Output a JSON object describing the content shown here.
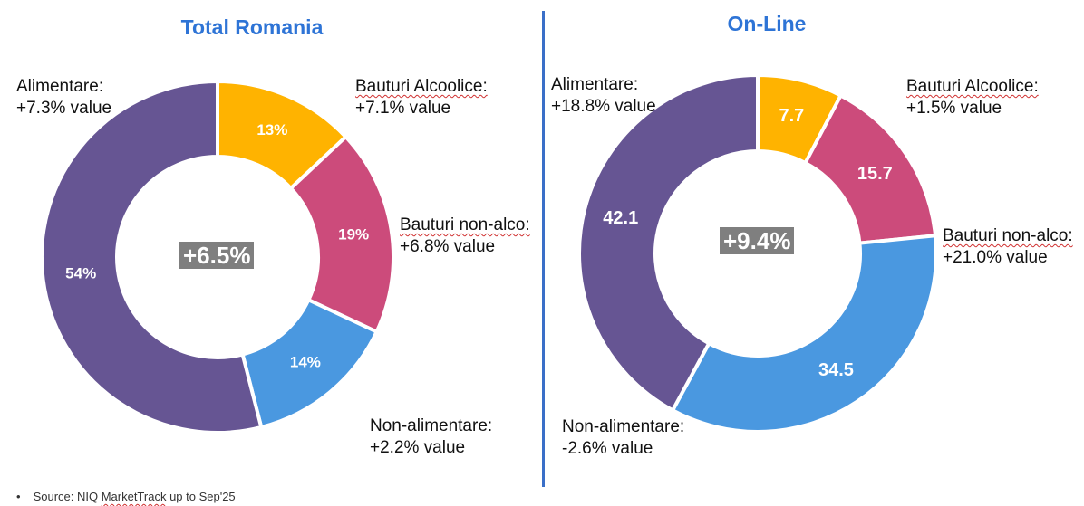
{
  "panels": [
    {
      "title": "Total Romania",
      "center_value": "+6.5%",
      "labels": [
        {
          "name": "Alimentare:",
          "value": "+7.3% value"
        },
        {
          "name": "Bauturi Alcoolice:",
          "value": "+7.1% value"
        },
        {
          "name": "Bauturi non-alco:",
          "value": "+6.8% value"
        },
        {
          "name": "Non-alimentare:",
          "value": "+2.2% value"
        }
      ]
    },
    {
      "title": "On-Line",
      "center_value": "+9.4%",
      "labels": [
        {
          "name": "Alimentare:",
          "value": "+18.8% value"
        },
        {
          "name": "Bauturi Alcoolice:",
          "value": "+1.5% value"
        },
        {
          "name": "Bauturi non-alco:",
          "value": "+21.0% value"
        },
        {
          "name": "Non-alimentare:",
          "value": "-2.6% value"
        }
      ]
    }
  ],
  "chart_data": [
    {
      "type": "pie",
      "subtype": "donut",
      "title": "Total Romania",
      "center_label": "+6.5%",
      "categories": [
        "Bauturi Alcoolice",
        "Bauturi non-alco",
        "Non-alimentare",
        "Alimentare"
      ],
      "values": [
        13,
        19,
        14,
        54
      ],
      "data_labels": [
        "13%",
        "19%",
        "14%",
        "54%"
      ],
      "colors": [
        "#ffb300",
        "#cc4b7b",
        "#4a98e0",
        "#665593"
      ]
    },
    {
      "type": "pie",
      "subtype": "donut",
      "title": "On-Line",
      "center_label": "+9.4%",
      "categories": [
        "Bauturi Alcoolice",
        "Bauturi non-alco",
        "Non-alimentare",
        "Alimentare"
      ],
      "values": [
        7.7,
        15.7,
        34.5,
        42.1
      ],
      "data_labels": [
        "7.7",
        "15.7",
        "34.5",
        "42.1"
      ],
      "colors": [
        "#ffb300",
        "#cc4b7b",
        "#4a98e0",
        "#665593"
      ]
    }
  ],
  "footer": {
    "bullet": "•",
    "source_prefix": "Source: NIQ ",
    "source_brand": "MarketTrack",
    "source_suffix": " up to Sep'25"
  }
}
